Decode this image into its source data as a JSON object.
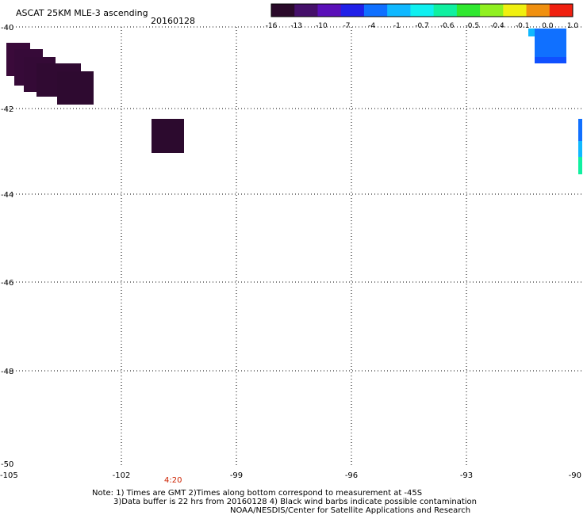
{
  "header": {
    "title": "ASCAT 25KM MLE-3 ascending",
    "date": "20160128"
  },
  "colorbar": {
    "labels": [
      "-16",
      "-13",
      "-10",
      "-7",
      "-4",
      "-1",
      "-0.7",
      "-0.6",
      "-0.5",
      "-0.4",
      "-0.1",
      "0.0",
      "1.0"
    ],
    "colors": [
      "#2a0a2a",
      "#45106a",
      "#5a10b8",
      "#2020e8",
      "#1070ff",
      "#10b8ff",
      "#10f0f0",
      "#10f0a0",
      "#30e830",
      "#90f020",
      "#f0f010",
      "#f09010",
      "#f02010"
    ]
  },
  "axes": {
    "lat_labels": [
      "-40",
      "-42",
      "-44",
      "-46",
      "-48",
      "-50"
    ],
    "lon_labels": [
      "-105",
      "-102",
      "-99",
      "-96",
      "-93",
      "-90"
    ]
  },
  "time_mark": "4:20",
  "notes": {
    "line1": "Note: 1) Times are GMT 2)Times along bottom correspond to measurement at -45S",
    "line2": "3)Data buffer is 22 hrs from 20160128 4) Black wind barbs indicate possible contamination",
    "line3": "NOAA/NESDIS/Center for Satellite Applications and Research"
  }
}
